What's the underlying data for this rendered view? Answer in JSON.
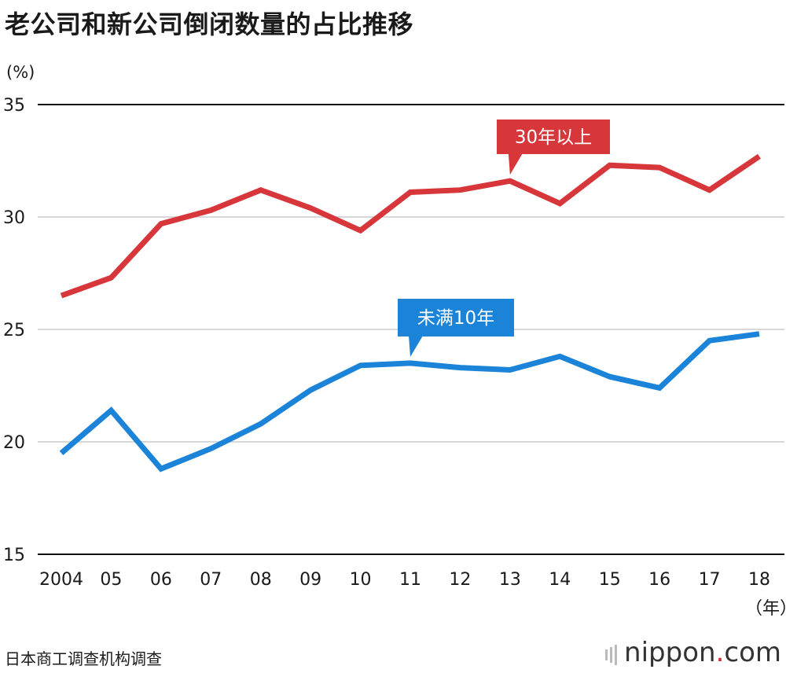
{
  "title": "老公司和新公司倒闭数量的占比推移",
  "y_unit": "(%)",
  "x_unit": "（年）",
  "source": "日本商工调查机构调查",
  "logo": {
    "text": "nippon",
    "dot": ".",
    "suffix": "com"
  },
  "colors": {
    "old": "#d7363a",
    "new": "#1b84d8",
    "grid": "#cccccc",
    "axis": "#111111"
  },
  "chart_data": {
    "type": "line",
    "title": "老公司和新公司倒闭数量的占比推移",
    "x": [
      "2004",
      "05",
      "06",
      "07",
      "08",
      "09",
      "10",
      "11",
      "12",
      "13",
      "14",
      "15",
      "16",
      "17",
      "18"
    ],
    "ylim": [
      15,
      35
    ],
    "yticks": [
      15,
      20,
      25,
      30,
      35
    ],
    "grid": true,
    "series": [
      {
        "name": "30年以上",
        "values": [
          26.5,
          27.3,
          29.7,
          30.3,
          31.2,
          30.4,
          29.4,
          31.1,
          31.2,
          31.6,
          30.6,
          32.3,
          32.2,
          31.2,
          32.7
        ]
      },
      {
        "name": "未满10年",
        "values": [
          19.5,
          21.4,
          18.8,
          19.7,
          20.8,
          22.3,
          23.4,
          23.5,
          23.3,
          23.2,
          23.8,
          22.9,
          22.4,
          24.5,
          24.8
        ]
      }
    ]
  }
}
